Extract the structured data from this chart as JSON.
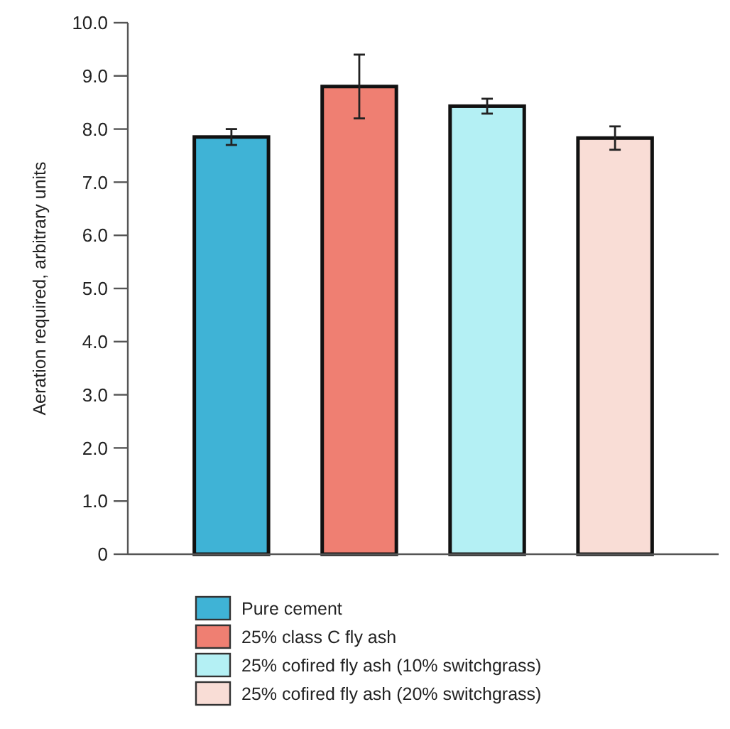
{
  "chart_data": {
    "type": "bar",
    "ylabel": "Aeration required, arbitrary units",
    "categories": [
      null,
      null,
      null,
      null
    ],
    "series": [
      {
        "name": "Pure cement",
        "color": "#3fb3d6",
        "values": [
          7.85,
          null,
          null,
          null
        ],
        "errors": [
          0.15,
          null,
          null,
          null
        ]
      },
      {
        "name": "25% class C fly ash",
        "color": "#ef7f72",
        "values": [
          null,
          8.8,
          null,
          null
        ],
        "errors": [
          null,
          0.6,
          null,
          null
        ]
      },
      {
        "name": "25% cofired fly ash (10% switchgrass)",
        "color": "#b4f0f4",
        "values": [
          null,
          null,
          8.43,
          null
        ],
        "errors": [
          null,
          null,
          0.14,
          null
        ]
      },
      {
        "name": "25% cofired fly ash (20% switchgrass)",
        "color": "#f9ddd6",
        "values": [
          null,
          null,
          null,
          7.83
        ],
        "errors": [
          null,
          null,
          null,
          0.22
        ]
      }
    ],
    "ylim": [
      0,
      10
    ],
    "yticks": [
      {
        "value": 0,
        "label": "0"
      },
      {
        "value": 1,
        "label": "1.0"
      },
      {
        "value": 2,
        "label": "2.0"
      },
      {
        "value": 3,
        "label": "3.0"
      },
      {
        "value": 4,
        "label": "4.0"
      },
      {
        "value": 5,
        "label": "5.0"
      },
      {
        "value": 6,
        "label": "6.0"
      },
      {
        "value": 7,
        "label": "7.0"
      },
      {
        "value": 8,
        "label": "8.0"
      },
      {
        "value": 9,
        "label": "9.0"
      },
      {
        "value": 10,
        "label": "10.0"
      }
    ],
    "legend": "bottom"
  }
}
